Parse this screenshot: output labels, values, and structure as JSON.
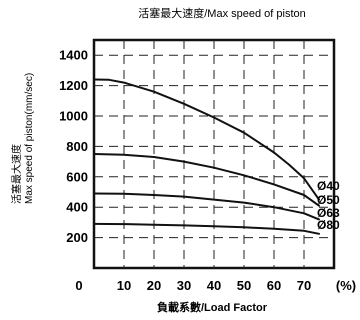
{
  "chart_data": {
    "type": "line",
    "title": "活塞最大速度/Max speed of piston",
    "xlabel": "負載系數/Load Factor",
    "ylabel_cn": "活塞最大速度",
    "ylabel_en": "Max speed of piston(mm/sec)",
    "x_unit_label": "(%)",
    "xlim": [
      0,
      80
    ],
    "ylim": [
      0,
      1500
    ],
    "x_ticks": [
      10,
      20,
      30,
      40,
      50,
      60,
      70
    ],
    "x_tick_labels": [
      "10",
      "20",
      "30",
      "40",
      "50",
      "60",
      "70"
    ],
    "y_ticks": [
      200,
      400,
      600,
      800,
      1000,
      1200,
      1400
    ],
    "y_tick_labels": [
      "200",
      "400",
      "600",
      "800",
      "1000",
      "1200",
      "1400"
    ],
    "origin_label": "0",
    "grid": true,
    "series": [
      {
        "name": "Ø40",
        "x": [
          0,
          5,
          10,
          20,
          30,
          40,
          50,
          60,
          65,
          70,
          75
        ],
        "y": [
          1240,
          1238,
          1220,
          1160,
          1080,
          990,
          890,
          760,
          680,
          590,
          450
        ]
      },
      {
        "name": "Ø50",
        "x": [
          0,
          10,
          20,
          30,
          40,
          50,
          60,
          70,
          75
        ],
        "y": [
          750,
          745,
          730,
          700,
          660,
          610,
          550,
          480,
          410
        ]
      },
      {
        "name": "Ø63",
        "x": [
          0,
          10,
          20,
          30,
          40,
          50,
          60,
          70,
          75
        ],
        "y": [
          490,
          488,
          480,
          470,
          450,
          430,
          400,
          360,
          320
        ]
      },
      {
        "name": "Ø80",
        "x": [
          0,
          10,
          20,
          30,
          40,
          50,
          60,
          70,
          75
        ],
        "y": [
          290,
          289,
          285,
          280,
          275,
          268,
          258,
          245,
          225
        ]
      }
    ]
  }
}
